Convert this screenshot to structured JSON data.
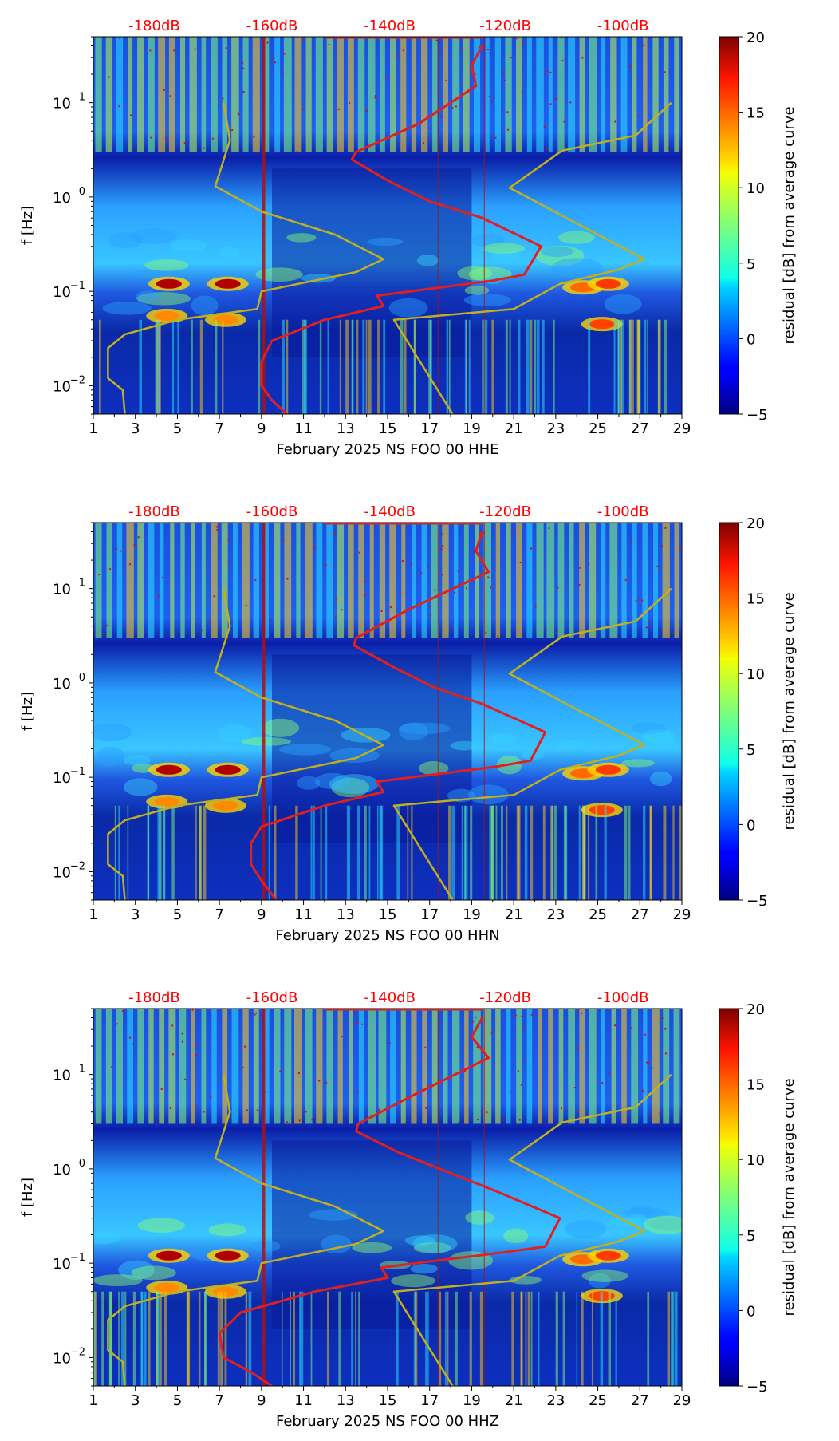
{
  "chart_data": [
    {
      "type": "heatmap",
      "xlabel": "February 2025 NS FOO 00 HHE",
      "ylabel": "f [Hz]",
      "x_ticks": [
        "1",
        "3",
        "5",
        "7",
        "9",
        "11",
        "13",
        "15",
        "17",
        "19",
        "21",
        "23",
        "25",
        "27",
        "29"
      ],
      "y_ticks": [
        {
          "base": "10",
          "exp": "1"
        },
        {
          "base": "10",
          "exp": "0"
        },
        {
          "base": "10",
          "exp": "−1"
        },
        {
          "base": "10",
          "exp": "−2"
        }
      ],
      "xlim": [
        1,
        29
      ],
      "ylim_hz": [
        0.005,
        50
      ],
      "top_axis_labels": [
        "-180dB",
        "-160dB",
        "-140dB",
        "-120dB",
        "-100dB"
      ],
      "colorbar": {
        "label": "residual [dB] from average curve",
        "min": -5,
        "max": 20,
        "ticks": [
          "20",
          "15",
          "10",
          "5",
          "0",
          "−5"
        ]
      },
      "series": [
        {
          "name": "average PSD (red)",
          "color": "#e02020",
          "points": [
            [
              19.5,
              40
            ],
            [
              19.0,
              25
            ],
            [
              19.2,
              15
            ],
            [
              16.5,
              6
            ],
            [
              13.5,
              3
            ],
            [
              13.3,
              2.5
            ],
            [
              15.0,
              1.5
            ],
            [
              17.0,
              0.9
            ],
            [
              19.5,
              0.6
            ],
            [
              22.3,
              0.3
            ],
            [
              21.5,
              0.15
            ],
            [
              20.0,
              0.13
            ],
            [
              14.5,
              0.09
            ],
            [
              14.8,
              0.07
            ],
            [
              12.0,
              0.05
            ],
            [
              9.5,
              0.03
            ],
            [
              9.0,
              0.018
            ],
            [
              9.0,
              0.01
            ],
            [
              9.5,
              0.007
            ],
            [
              10.2,
              0.005
            ]
          ]
        },
        {
          "name": "low noise model (yellow)",
          "color": "#c0b020",
          "points": [
            [
              7.2,
              10
            ],
            [
              7.5,
              4
            ],
            [
              6.8,
              1.3
            ],
            [
              9.0,
              0.7
            ],
            [
              12.5,
              0.4
            ],
            [
              14.8,
              0.22
            ],
            [
              13.5,
              0.16
            ],
            [
              9.0,
              0.1
            ],
            [
              8.8,
              0.065
            ],
            [
              5.0,
              0.05
            ],
            [
              2.5,
              0.035
            ],
            [
              1.7,
              0.025
            ],
            [
              1.7,
              0.012
            ],
            [
              2.4,
              0.009
            ],
            [
              2.5,
              0.005
            ]
          ]
        },
        {
          "name": "high noise model (yellow)",
          "color": "#c0b020",
          "points": [
            [
              28.5,
              10
            ],
            [
              26.8,
              4.5
            ],
            [
              23.3,
              3.1
            ],
            [
              20.8,
              1.25
            ],
            [
              27.2,
              0.22
            ],
            [
              26.0,
              0.17
            ],
            [
              23.2,
              0.12
            ],
            [
              21.0,
              0.065
            ],
            [
              15.3,
              0.05
            ],
            [
              18.1,
              0.005
            ]
          ]
        }
      ]
    },
    {
      "type": "heatmap",
      "xlabel": "February 2025 NS FOO 00 HHN",
      "ylabel": "f [Hz]",
      "x_ticks": [
        "1",
        "3",
        "5",
        "7",
        "9",
        "11",
        "13",
        "15",
        "17",
        "19",
        "21",
        "23",
        "25",
        "27",
        "29"
      ],
      "y_ticks": [
        {
          "base": "10",
          "exp": "1"
        },
        {
          "base": "10",
          "exp": "0"
        },
        {
          "base": "10",
          "exp": "−1"
        },
        {
          "base": "10",
          "exp": "−2"
        }
      ],
      "xlim": [
        1,
        29
      ],
      "ylim_hz": [
        0.005,
        50
      ],
      "top_axis_labels": [
        "-180dB",
        "-160dB",
        "-140dB",
        "-120dB",
        "-100dB"
      ],
      "colorbar": {
        "label": "residual [dB] from average curve",
        "min": -5,
        "max": 20,
        "ticks": [
          "20",
          "15",
          "10",
          "5",
          "0",
          "−5"
        ]
      },
      "series": [
        {
          "name": "average PSD (red)",
          "color": "#e02020",
          "points": [
            [
              19.5,
              40
            ],
            [
              19.2,
              25
            ],
            [
              19.8,
              15
            ],
            [
              16.0,
              6
            ],
            [
              13.5,
              3
            ],
            [
              13.4,
              2.5
            ],
            [
              15.2,
              1.5
            ],
            [
              17.2,
              0.9
            ],
            [
              19.5,
              0.6
            ],
            [
              22.5,
              0.3
            ],
            [
              21.8,
              0.15
            ],
            [
              20.2,
              0.13
            ],
            [
              14.5,
              0.09
            ],
            [
              14.8,
              0.07
            ],
            [
              12.0,
              0.05
            ],
            [
              9.0,
              0.03
            ],
            [
              8.5,
              0.02
            ],
            [
              8.5,
              0.012
            ],
            [
              9.0,
              0.008
            ],
            [
              9.7,
              0.005
            ]
          ]
        },
        {
          "name": "low noise model (yellow)",
          "color": "#c0b020",
          "points": [
            [
              7.2,
              10
            ],
            [
              7.5,
              4
            ],
            [
              6.8,
              1.3
            ],
            [
              9.0,
              0.7
            ],
            [
              12.5,
              0.4
            ],
            [
              14.8,
              0.22
            ],
            [
              13.5,
              0.16
            ],
            [
              9.0,
              0.1
            ],
            [
              8.8,
              0.065
            ],
            [
              5.0,
              0.05
            ],
            [
              2.5,
              0.035
            ],
            [
              1.7,
              0.025
            ],
            [
              1.7,
              0.012
            ],
            [
              2.4,
              0.009
            ],
            [
              2.5,
              0.005
            ]
          ]
        },
        {
          "name": "high noise model (yellow)",
          "color": "#c0b020",
          "points": [
            [
              28.5,
              10
            ],
            [
              26.8,
              4.5
            ],
            [
              23.3,
              3.1
            ],
            [
              20.8,
              1.25
            ],
            [
              27.2,
              0.22
            ],
            [
              26.0,
              0.17
            ],
            [
              23.2,
              0.12
            ],
            [
              21.0,
              0.065
            ],
            [
              15.3,
              0.05
            ],
            [
              18.1,
              0.005
            ]
          ]
        }
      ]
    },
    {
      "type": "heatmap",
      "xlabel": "February 2025 NS FOO 00 HHZ",
      "ylabel": "f [Hz]",
      "x_ticks": [
        "1",
        "3",
        "5",
        "7",
        "9",
        "11",
        "13",
        "15",
        "17",
        "19",
        "21",
        "23",
        "25",
        "27",
        "29"
      ],
      "y_ticks": [
        {
          "base": "10",
          "exp": "1"
        },
        {
          "base": "10",
          "exp": "0"
        },
        {
          "base": "10",
          "exp": "−1"
        },
        {
          "base": "10",
          "exp": "−2"
        }
      ],
      "xlim": [
        1,
        29
      ],
      "ylim_hz": [
        0.005,
        50
      ],
      "top_axis_labels": [
        "-180dB",
        "-160dB",
        "-140dB",
        "-120dB",
        "-100dB"
      ],
      "colorbar": {
        "label": "residual [dB] from average curve",
        "min": -5,
        "max": 20,
        "ticks": [
          "20",
          "15",
          "10",
          "5",
          "0",
          "−5"
        ]
      },
      "series": [
        {
          "name": "average PSD (red)",
          "color": "#e02020",
          "points": [
            [
              19.5,
              40
            ],
            [
              19.0,
              25
            ],
            [
              19.8,
              15
            ],
            [
              16.2,
              6
            ],
            [
              13.6,
              3
            ],
            [
              13.5,
              2.5
            ],
            [
              15.5,
              1.5
            ],
            [
              18.0,
              0.9
            ],
            [
              20.0,
              0.6
            ],
            [
              23.2,
              0.3
            ],
            [
              22.5,
              0.15
            ],
            [
              20.5,
              0.13
            ],
            [
              14.7,
              0.09
            ],
            [
              15.0,
              0.07
            ],
            [
              11.5,
              0.05
            ],
            [
              8.0,
              0.03
            ],
            [
              7.0,
              0.018
            ],
            [
              7.2,
              0.01
            ],
            [
              8.5,
              0.007
            ],
            [
              9.5,
              0.005
            ]
          ]
        },
        {
          "name": "low noise model (yellow)",
          "color": "#c0b020",
          "points": [
            [
              7.2,
              10
            ],
            [
              7.5,
              4
            ],
            [
              6.8,
              1.3
            ],
            [
              9.0,
              0.7
            ],
            [
              12.5,
              0.4
            ],
            [
              14.8,
              0.22
            ],
            [
              13.5,
              0.16
            ],
            [
              9.0,
              0.1
            ],
            [
              8.8,
              0.065
            ],
            [
              5.0,
              0.05
            ],
            [
              2.5,
              0.035
            ],
            [
              1.7,
              0.025
            ],
            [
              1.7,
              0.012
            ],
            [
              2.4,
              0.009
            ],
            [
              2.5,
              0.005
            ]
          ]
        },
        {
          "name": "high noise model (yellow)",
          "color": "#c0b020",
          "points": [
            [
              28.5,
              10
            ],
            [
              26.8,
              4.5
            ],
            [
              23.3,
              3.1
            ],
            [
              20.8,
              1.25
            ],
            [
              27.2,
              0.22
            ],
            [
              26.0,
              0.17
            ],
            [
              23.2,
              0.12
            ],
            [
              21.0,
              0.065
            ],
            [
              15.3,
              0.05
            ],
            [
              18.1,
              0.005
            ]
          ]
        }
      ]
    }
  ]
}
